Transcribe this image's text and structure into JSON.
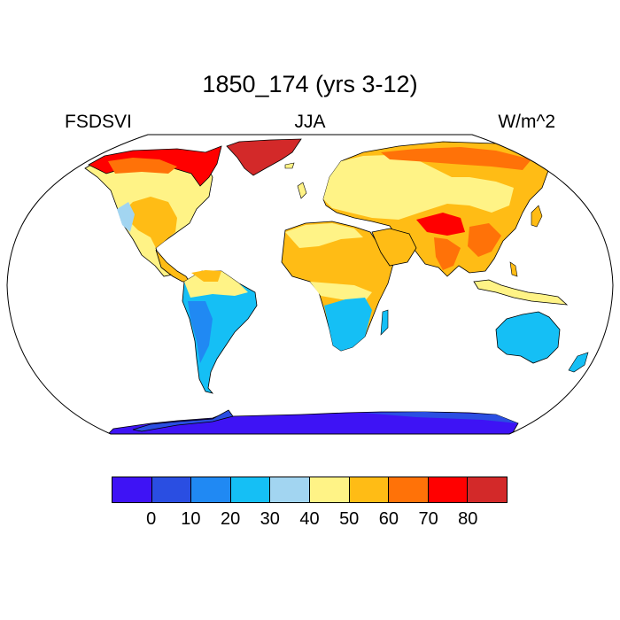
{
  "title": "1850_174 (yrs 3-12)",
  "left_label": "FSDSVI",
  "center_label": "JJA",
  "right_label": "W/m^2",
  "colorbar": {
    "colors": [
      "#3e13f5",
      "#2a4ee2",
      "#2089f3",
      "#15bff5",
      "#a2d5f1",
      "#fff386",
      "#ffbc15",
      "#ff7208",
      "#ff0000",
      "#d32929"
    ],
    "ticks": [
      "0",
      "10",
      "20",
      "30",
      "40",
      "50",
      "60",
      "70",
      "80"
    ]
  },
  "map": {
    "projection": "Robinson",
    "land_color_regions": [
      {
        "region": "antarctica",
        "color": "#3e13f5"
      },
      {
        "region": "antarctic-peninsula",
        "color": "#2a4ee2"
      },
      {
        "region": "greenland",
        "color": "#d32929"
      },
      {
        "region": "arctic-canada",
        "color": "#ff0000"
      },
      {
        "region": "north-america",
        "color": "#fff386"
      },
      {
        "region": "south-america",
        "color": "#15bff5"
      },
      {
        "region": "europe",
        "color": "#fff386"
      },
      {
        "region": "africa",
        "color": "#ffbc15"
      },
      {
        "region": "southern-africa",
        "color": "#15bff5"
      },
      {
        "region": "asia",
        "color": "#ffbc15"
      },
      {
        "region": "australia",
        "color": "#15bff5"
      }
    ]
  }
}
